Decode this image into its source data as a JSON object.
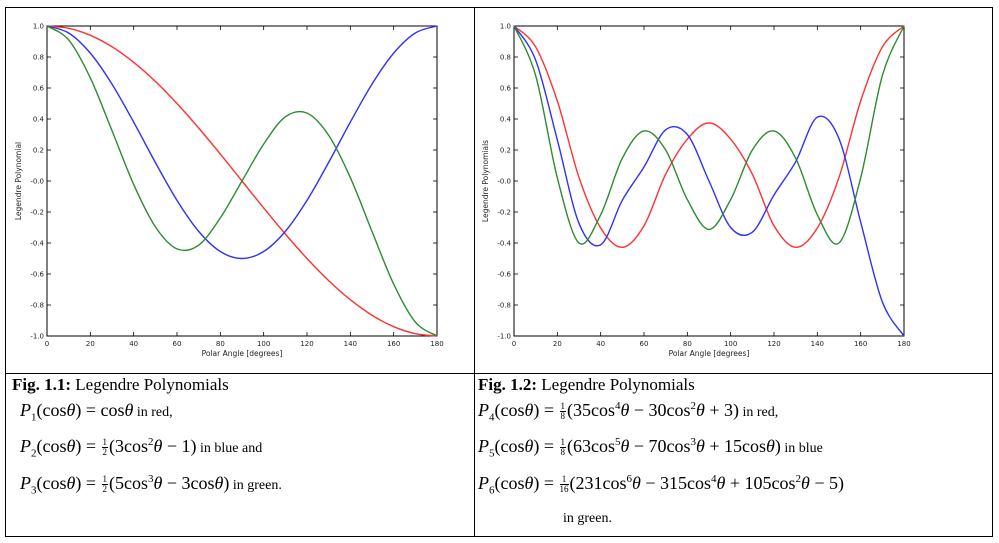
{
  "chart_data": [
    {
      "type": "line",
      "xlabel": "Polar Angle [degrees]",
      "ylabel": "Legendre Polynomial",
      "xlim": [
        0,
        180
      ],
      "ylim": [
        -1.0,
        1.0
      ],
      "xticks": [
        "0",
        "20",
        "40",
        "60",
        "80",
        "100",
        "120",
        "140",
        "160",
        "180"
      ],
      "yticks": [
        "1.0",
        "0.8",
        "0.6",
        "0.4",
        "0.2",
        "-0.0",
        "-0.2",
        "-0.4",
        "-0.6",
        "-0.8",
        "-1.0"
      ],
      "grid": false,
      "series": [
        {
          "name": "P1",
          "color": "#ff3030",
          "x": [
            0,
            10,
            20,
            30,
            40,
            50,
            60,
            70,
            80,
            90,
            100,
            110,
            120,
            130,
            140,
            150,
            160,
            170,
            180
          ],
          "y": [
            1.0,
            0.985,
            0.94,
            0.866,
            0.766,
            0.643,
            0.5,
            0.342,
            0.174,
            0.0,
            -0.174,
            -0.342,
            -0.5,
            -0.643,
            -0.766,
            -0.866,
            -0.94,
            -0.985,
            -1.0
          ]
        },
        {
          "name": "P2",
          "color": "#3030ff",
          "x": [
            0,
            10,
            20,
            30,
            40,
            50,
            60,
            70,
            80,
            90,
            100,
            110,
            120,
            130,
            140,
            150,
            160,
            170,
            180
          ],
          "y": [
            1.0,
            0.955,
            0.825,
            0.625,
            0.38,
            0.12,
            -0.125,
            -0.325,
            -0.455,
            -0.5,
            -0.455,
            -0.325,
            -0.125,
            0.12,
            0.38,
            0.625,
            0.825,
            0.955,
            1.0
          ]
        },
        {
          "name": "P3",
          "color": "#2e8b2e",
          "x": [
            0,
            10,
            20,
            30,
            40,
            50,
            60,
            70,
            80,
            90,
            100,
            110,
            120,
            130,
            140,
            150,
            160,
            170,
            180
          ],
          "y": [
            1.0,
            0.91,
            0.665,
            0.325,
            -0.022,
            -0.295,
            -0.438,
            -0.414,
            -0.238,
            0.0,
            0.238,
            0.414,
            0.438,
            0.295,
            0.022,
            -0.325,
            -0.665,
            -0.91,
            -1.0
          ]
        }
      ]
    },
    {
      "type": "line",
      "xlabel": "Polar Angle [degrees]",
      "ylabel": "Legendre Polynomials",
      "xlim": [
        0,
        180
      ],
      "ylim": [
        -1.0,
        1.0
      ],
      "xticks": [
        "0",
        "20",
        "40",
        "60",
        "80",
        "100",
        "120",
        "140",
        "160",
        "180"
      ],
      "yticks": [
        "1.0",
        "0.8",
        "0.6",
        "0.4",
        "0.2",
        "-0.0",
        "-0.2",
        "-0.4",
        "-0.6",
        "-0.8",
        "-1.0"
      ],
      "grid": false,
      "series": [
        {
          "name": "P4",
          "color": "#ff3030",
          "x": [
            0,
            10,
            20,
            30,
            40,
            50,
            60,
            70,
            80,
            90,
            100,
            110,
            120,
            130,
            140,
            150,
            160,
            170,
            180
          ],
          "y": [
            1.0,
            0.865,
            0.516,
            0.023,
            -0.303,
            -0.428,
            -0.289,
            0.044,
            0.27,
            0.375,
            0.27,
            0.044,
            -0.289,
            -0.428,
            -0.303,
            0.023,
            0.516,
            0.865,
            1.0
          ]
        },
        {
          "name": "P5",
          "color": "#3030ff",
          "x": [
            0,
            10,
            20,
            30,
            40,
            50,
            60,
            70,
            80,
            90,
            100,
            110,
            120,
            130,
            140,
            150,
            160,
            170,
            180
          ],
          "y": [
            1.0,
            0.78,
            0.265,
            -0.273,
            -0.412,
            -0.124,
            0.09,
            0.33,
            0.3,
            0.0,
            -0.3,
            -0.33,
            -0.09,
            0.124,
            0.412,
            0.273,
            -0.265,
            -0.78,
            -1.0
          ]
        },
        {
          "name": "P6",
          "color": "#2e8b2e",
          "x": [
            0,
            10,
            20,
            30,
            40,
            50,
            60,
            70,
            80,
            90,
            100,
            110,
            120,
            130,
            140,
            150,
            160,
            170,
            180
          ],
          "y": [
            1.0,
            0.68,
            0.02,
            -0.4,
            -0.218,
            0.147,
            0.323,
            0.2,
            -0.12,
            -0.3125,
            -0.12,
            0.2,
            0.323,
            0.147,
            -0.218,
            -0.4,
            0.02,
            0.68,
            1.0
          ]
        }
      ]
    }
  ],
  "captions": [
    {
      "fig": "Fig. 1.1:",
      "title": " Legendre Polynomials",
      "notes": [
        " in red,",
        " in blue and",
        " in green."
      ]
    },
    {
      "fig": "Fig. 1.2:",
      "title": " Legendre Polynomials",
      "notes": [
        " in red,",
        " in blue",
        "in green."
      ]
    }
  ]
}
